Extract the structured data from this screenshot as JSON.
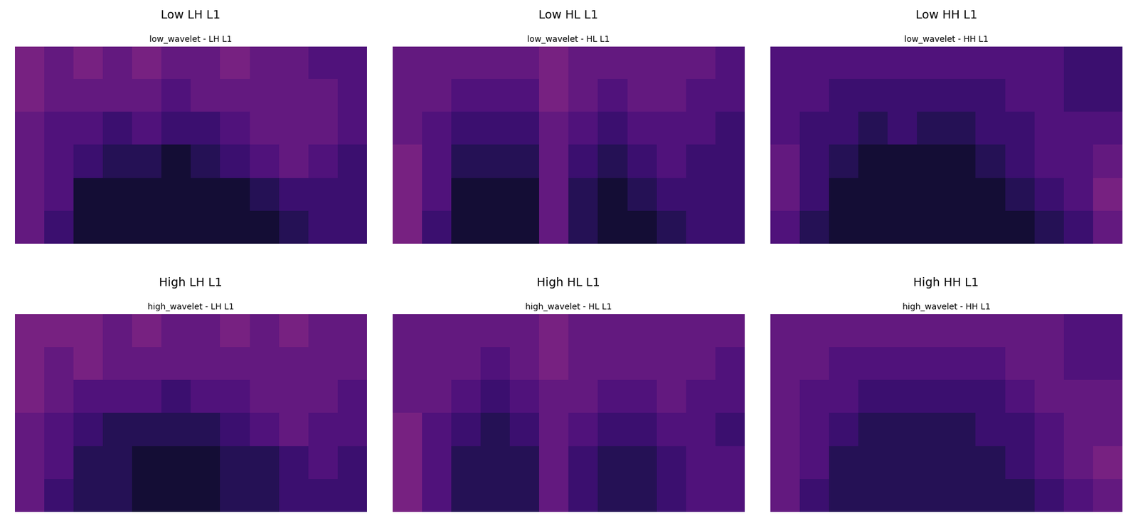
{
  "chart_data": [
    {
      "type": "heatmap",
      "title": "Low LH L1",
      "subtitle": "low_wavelet - LH L1",
      "color": "magma",
      "tick_labels": false,
      "color_range": [
        0,
        1
      ],
      "cells": [
        [
          0.35,
          0.3,
          0.35,
          0.3,
          0.35,
          0.3,
          0.3,
          0.35,
          0.3,
          0.3,
          0.25,
          0.25
        ],
        [
          0.35,
          0.3,
          0.3,
          0.3,
          0.3,
          0.25,
          0.3,
          0.3,
          0.3,
          0.3,
          0.3,
          0.25
        ],
        [
          0.3,
          0.25,
          0.25,
          0.2,
          0.25,
          0.2,
          0.2,
          0.25,
          0.3,
          0.3,
          0.3,
          0.25
        ],
        [
          0.3,
          0.25,
          0.2,
          0.15,
          0.15,
          0.1,
          0.15,
          0.2,
          0.25,
          0.3,
          0.25,
          0.2
        ],
        [
          0.3,
          0.25,
          0.1,
          0.1,
          0.1,
          0.1,
          0.1,
          0.1,
          0.15,
          0.2,
          0.2,
          0.2
        ],
        [
          0.3,
          0.2,
          0.1,
          0.1,
          0.1,
          0.1,
          0.1,
          0.1,
          0.1,
          0.15,
          0.2,
          0.2
        ]
      ]
    },
    {
      "type": "heatmap",
      "title": "Low HL L1",
      "subtitle": "low_wavelet - HL L1",
      "color": "magma",
      "tick_labels": false,
      "color_range": [
        0,
        1
      ],
      "cells": [
        [
          0.3,
          0.3,
          0.3,
          0.3,
          0.3,
          0.35,
          0.3,
          0.3,
          0.3,
          0.3,
          0.3,
          0.25
        ],
        [
          0.3,
          0.3,
          0.25,
          0.25,
          0.25,
          0.35,
          0.3,
          0.25,
          0.3,
          0.3,
          0.25,
          0.25
        ],
        [
          0.3,
          0.25,
          0.2,
          0.2,
          0.2,
          0.3,
          0.25,
          0.2,
          0.25,
          0.25,
          0.25,
          0.2
        ],
        [
          0.35,
          0.25,
          0.15,
          0.15,
          0.15,
          0.3,
          0.2,
          0.15,
          0.2,
          0.25,
          0.2,
          0.2
        ],
        [
          0.35,
          0.25,
          0.1,
          0.1,
          0.1,
          0.3,
          0.15,
          0.1,
          0.15,
          0.2,
          0.2,
          0.2
        ],
        [
          0.35,
          0.2,
          0.1,
          0.1,
          0.1,
          0.3,
          0.15,
          0.1,
          0.1,
          0.15,
          0.2,
          0.2
        ]
      ]
    },
    {
      "type": "heatmap",
      "title": "Low HH L1",
      "subtitle": "low_wavelet - HH L1",
      "color": "magma",
      "tick_labels": false,
      "color_range": [
        0,
        1
      ],
      "cells": [
        [
          0.25,
          0.25,
          0.25,
          0.25,
          0.25,
          0.25,
          0.25,
          0.25,
          0.25,
          0.25,
          0.2,
          0.2
        ],
        [
          0.25,
          0.25,
          0.2,
          0.2,
          0.2,
          0.2,
          0.2,
          0.2,
          0.25,
          0.25,
          0.2,
          0.2
        ],
        [
          0.25,
          0.2,
          0.2,
          0.15,
          0.2,
          0.15,
          0.15,
          0.2,
          0.2,
          0.25,
          0.25,
          0.25
        ],
        [
          0.3,
          0.2,
          0.15,
          0.1,
          0.1,
          0.1,
          0.1,
          0.15,
          0.2,
          0.25,
          0.25,
          0.3
        ],
        [
          0.3,
          0.2,
          0.1,
          0.1,
          0.1,
          0.1,
          0.1,
          0.1,
          0.15,
          0.2,
          0.25,
          0.35
        ],
        [
          0.25,
          0.15,
          0.1,
          0.1,
          0.1,
          0.1,
          0.1,
          0.1,
          0.1,
          0.15,
          0.2,
          0.3
        ]
      ]
    },
    {
      "type": "heatmap",
      "title": "High LH L1",
      "subtitle": "high_wavelet - LH L1",
      "color": "magma",
      "tick_labels": false,
      "color_range": [
        0,
        1
      ],
      "cells": [
        [
          0.35,
          0.35,
          0.35,
          0.3,
          0.35,
          0.3,
          0.3,
          0.35,
          0.3,
          0.35,
          0.3,
          0.3
        ],
        [
          0.35,
          0.3,
          0.35,
          0.3,
          0.3,
          0.3,
          0.3,
          0.3,
          0.3,
          0.3,
          0.3,
          0.3
        ],
        [
          0.35,
          0.3,
          0.25,
          0.25,
          0.25,
          0.2,
          0.25,
          0.25,
          0.3,
          0.3,
          0.3,
          0.25
        ],
        [
          0.3,
          0.25,
          0.2,
          0.15,
          0.15,
          0.15,
          0.15,
          0.2,
          0.25,
          0.3,
          0.25,
          0.25
        ],
        [
          0.3,
          0.25,
          0.15,
          0.15,
          0.1,
          0.1,
          0.1,
          0.15,
          0.15,
          0.2,
          0.25,
          0.2
        ],
        [
          0.3,
          0.2,
          0.15,
          0.15,
          0.1,
          0.1,
          0.1,
          0.15,
          0.15,
          0.2,
          0.2,
          0.2
        ]
      ]
    },
    {
      "type": "heatmap",
      "title": "High HL L1",
      "subtitle": "high_wavelet - HL L1",
      "color": "magma",
      "tick_labels": false,
      "color_range": [
        0,
        1
      ],
      "cells": [
        [
          0.3,
          0.3,
          0.3,
          0.3,
          0.3,
          0.35,
          0.3,
          0.3,
          0.3,
          0.3,
          0.3,
          0.3
        ],
        [
          0.3,
          0.3,
          0.3,
          0.25,
          0.3,
          0.35,
          0.3,
          0.3,
          0.3,
          0.3,
          0.3,
          0.25
        ],
        [
          0.3,
          0.3,
          0.25,
          0.2,
          0.25,
          0.3,
          0.3,
          0.25,
          0.25,
          0.3,
          0.25,
          0.25
        ],
        [
          0.35,
          0.25,
          0.2,
          0.15,
          0.2,
          0.3,
          0.25,
          0.2,
          0.2,
          0.25,
          0.25,
          0.2
        ],
        [
          0.35,
          0.25,
          0.15,
          0.15,
          0.15,
          0.3,
          0.2,
          0.15,
          0.15,
          0.2,
          0.25,
          0.25
        ],
        [
          0.35,
          0.25,
          0.15,
          0.15,
          0.15,
          0.3,
          0.2,
          0.15,
          0.15,
          0.2,
          0.25,
          0.25
        ]
      ]
    },
    {
      "type": "heatmap",
      "title": "High HH L1",
      "subtitle": "high_wavelet - HH L1",
      "color": "magma",
      "tick_labels": false,
      "color_range": [
        0,
        1
      ],
      "cells": [
        [
          0.3,
          0.3,
          0.3,
          0.3,
          0.3,
          0.3,
          0.3,
          0.3,
          0.3,
          0.3,
          0.25,
          0.25
        ],
        [
          0.3,
          0.3,
          0.25,
          0.25,
          0.25,
          0.25,
          0.25,
          0.25,
          0.3,
          0.3,
          0.25,
          0.25
        ],
        [
          0.3,
          0.25,
          0.25,
          0.2,
          0.2,
          0.2,
          0.2,
          0.2,
          0.25,
          0.3,
          0.3,
          0.3
        ],
        [
          0.3,
          0.25,
          0.2,
          0.15,
          0.15,
          0.15,
          0.15,
          0.2,
          0.2,
          0.25,
          0.3,
          0.3
        ],
        [
          0.3,
          0.25,
          0.15,
          0.15,
          0.15,
          0.15,
          0.15,
          0.15,
          0.2,
          0.25,
          0.3,
          0.35
        ],
        [
          0.3,
          0.2,
          0.15,
          0.15,
          0.15,
          0.15,
          0.15,
          0.15,
          0.15,
          0.2,
          0.25,
          0.3
        ]
      ]
    }
  ]
}
